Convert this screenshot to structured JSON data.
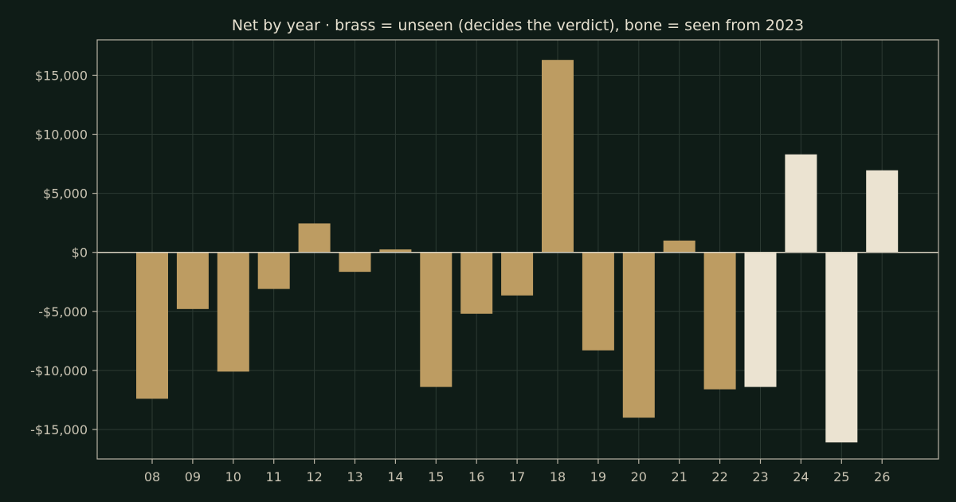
{
  "colors": {
    "background": "#0f1c17",
    "unseen": "#bd9c62",
    "seen": "#ebe3d1",
    "grid": "#2c3a33",
    "text": "#e6e0cf"
  },
  "chart_data": {
    "type": "bar",
    "title": "Net by year  ·  brass = unseen (decides the verdict), bone = seen from 2023",
    "xlabel": "",
    "ylabel": "",
    "categories": [
      "08",
      "09",
      "10",
      "11",
      "12",
      "13",
      "14",
      "15",
      "16",
      "17",
      "18",
      "19",
      "20",
      "21",
      "22",
      "23",
      "24",
      "25",
      "26"
    ],
    "values": [
      -12400,
      -4800,
      -10100,
      -3100,
      2450,
      -1650,
      250,
      -11400,
      -5200,
      -3650,
      16300,
      -8300,
      -14000,
      1000,
      -11600,
      -11400,
      8300,
      -16100,
      6950
    ],
    "bar_group": [
      "unseen",
      "unseen",
      "unseen",
      "unseen",
      "unseen",
      "unseen",
      "unseen",
      "unseen",
      "unseen",
      "unseen",
      "unseen",
      "unseen",
      "unseen",
      "unseen",
      "unseen",
      "seen",
      "seen",
      "seen",
      "seen"
    ],
    "ylim": [
      -17500,
      18000
    ],
    "yticks": [
      15000,
      10000,
      5000,
      0,
      -5000,
      -10000,
      -15000
    ],
    "ytick_labels": [
      "$15,000",
      "$10,000",
      "$5,000",
      "$0",
      "-$5,000",
      "-$10,000",
      "-$15,000"
    ],
    "grid": true
  }
}
